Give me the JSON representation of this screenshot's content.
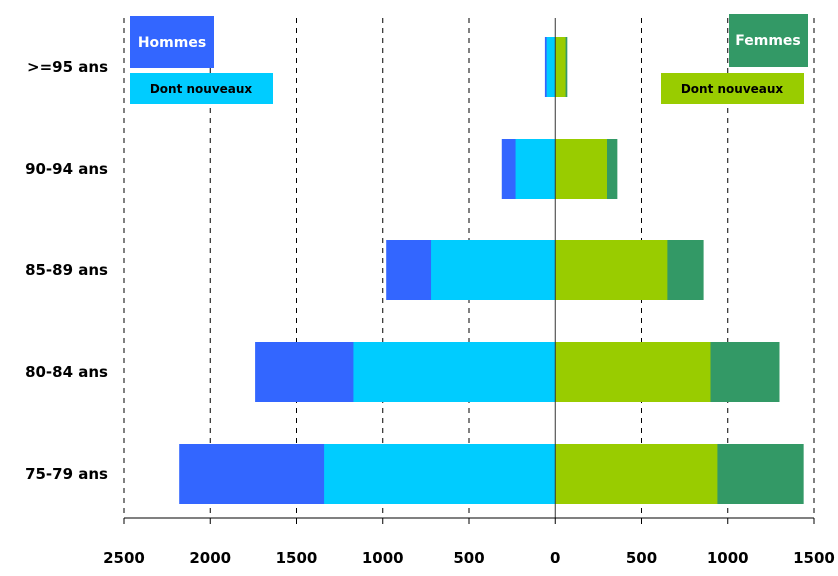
{
  "chart_data": {
    "type": "bar",
    "orientation": "horizontal",
    "layout": "population-pyramid",
    "categories": [
      ">=95 ans",
      "90-94 ans",
      "85-89 ans",
      "80-84 ans",
      "75-79 ans"
    ],
    "series": [
      {
        "name": "Hommes",
        "side": "left",
        "color": "#3366ff",
        "values": [
          -60,
          -310,
          -980,
          -1740,
          -2180
        ]
      },
      {
        "name": "Dont nouveaux",
        "side": "left",
        "color": "#00ccff",
        "values": [
          -50,
          -230,
          -720,
          -1170,
          -1340
        ]
      },
      {
        "name": "Femmes",
        "side": "right",
        "color": "#339966",
        "values": [
          70,
          360,
          860,
          1300,
          1440
        ]
      },
      {
        "name": "Dont nouveaux",
        "side": "right",
        "color": "#99cc00",
        "values": [
          60,
          300,
          650,
          900,
          940
        ]
      }
    ],
    "xlim": [
      -2500,
      1500
    ],
    "x_ticks": [
      -2500,
      -2000,
      -1500,
      -1000,
      -500,
      0,
      500,
      1000,
      1500
    ],
    "x_tick_labels": [
      "2500",
      "2000",
      "1500",
      "1000",
      "500",
      "0",
      "500",
      "1000",
      "1500"
    ],
    "grid": "vertical dashed",
    "legend": {
      "left_top": "Hommes",
      "left_sub": "Dont nouveaux",
      "right_top": "Femmes",
      "right_sub": "Dont nouveaux"
    }
  }
}
